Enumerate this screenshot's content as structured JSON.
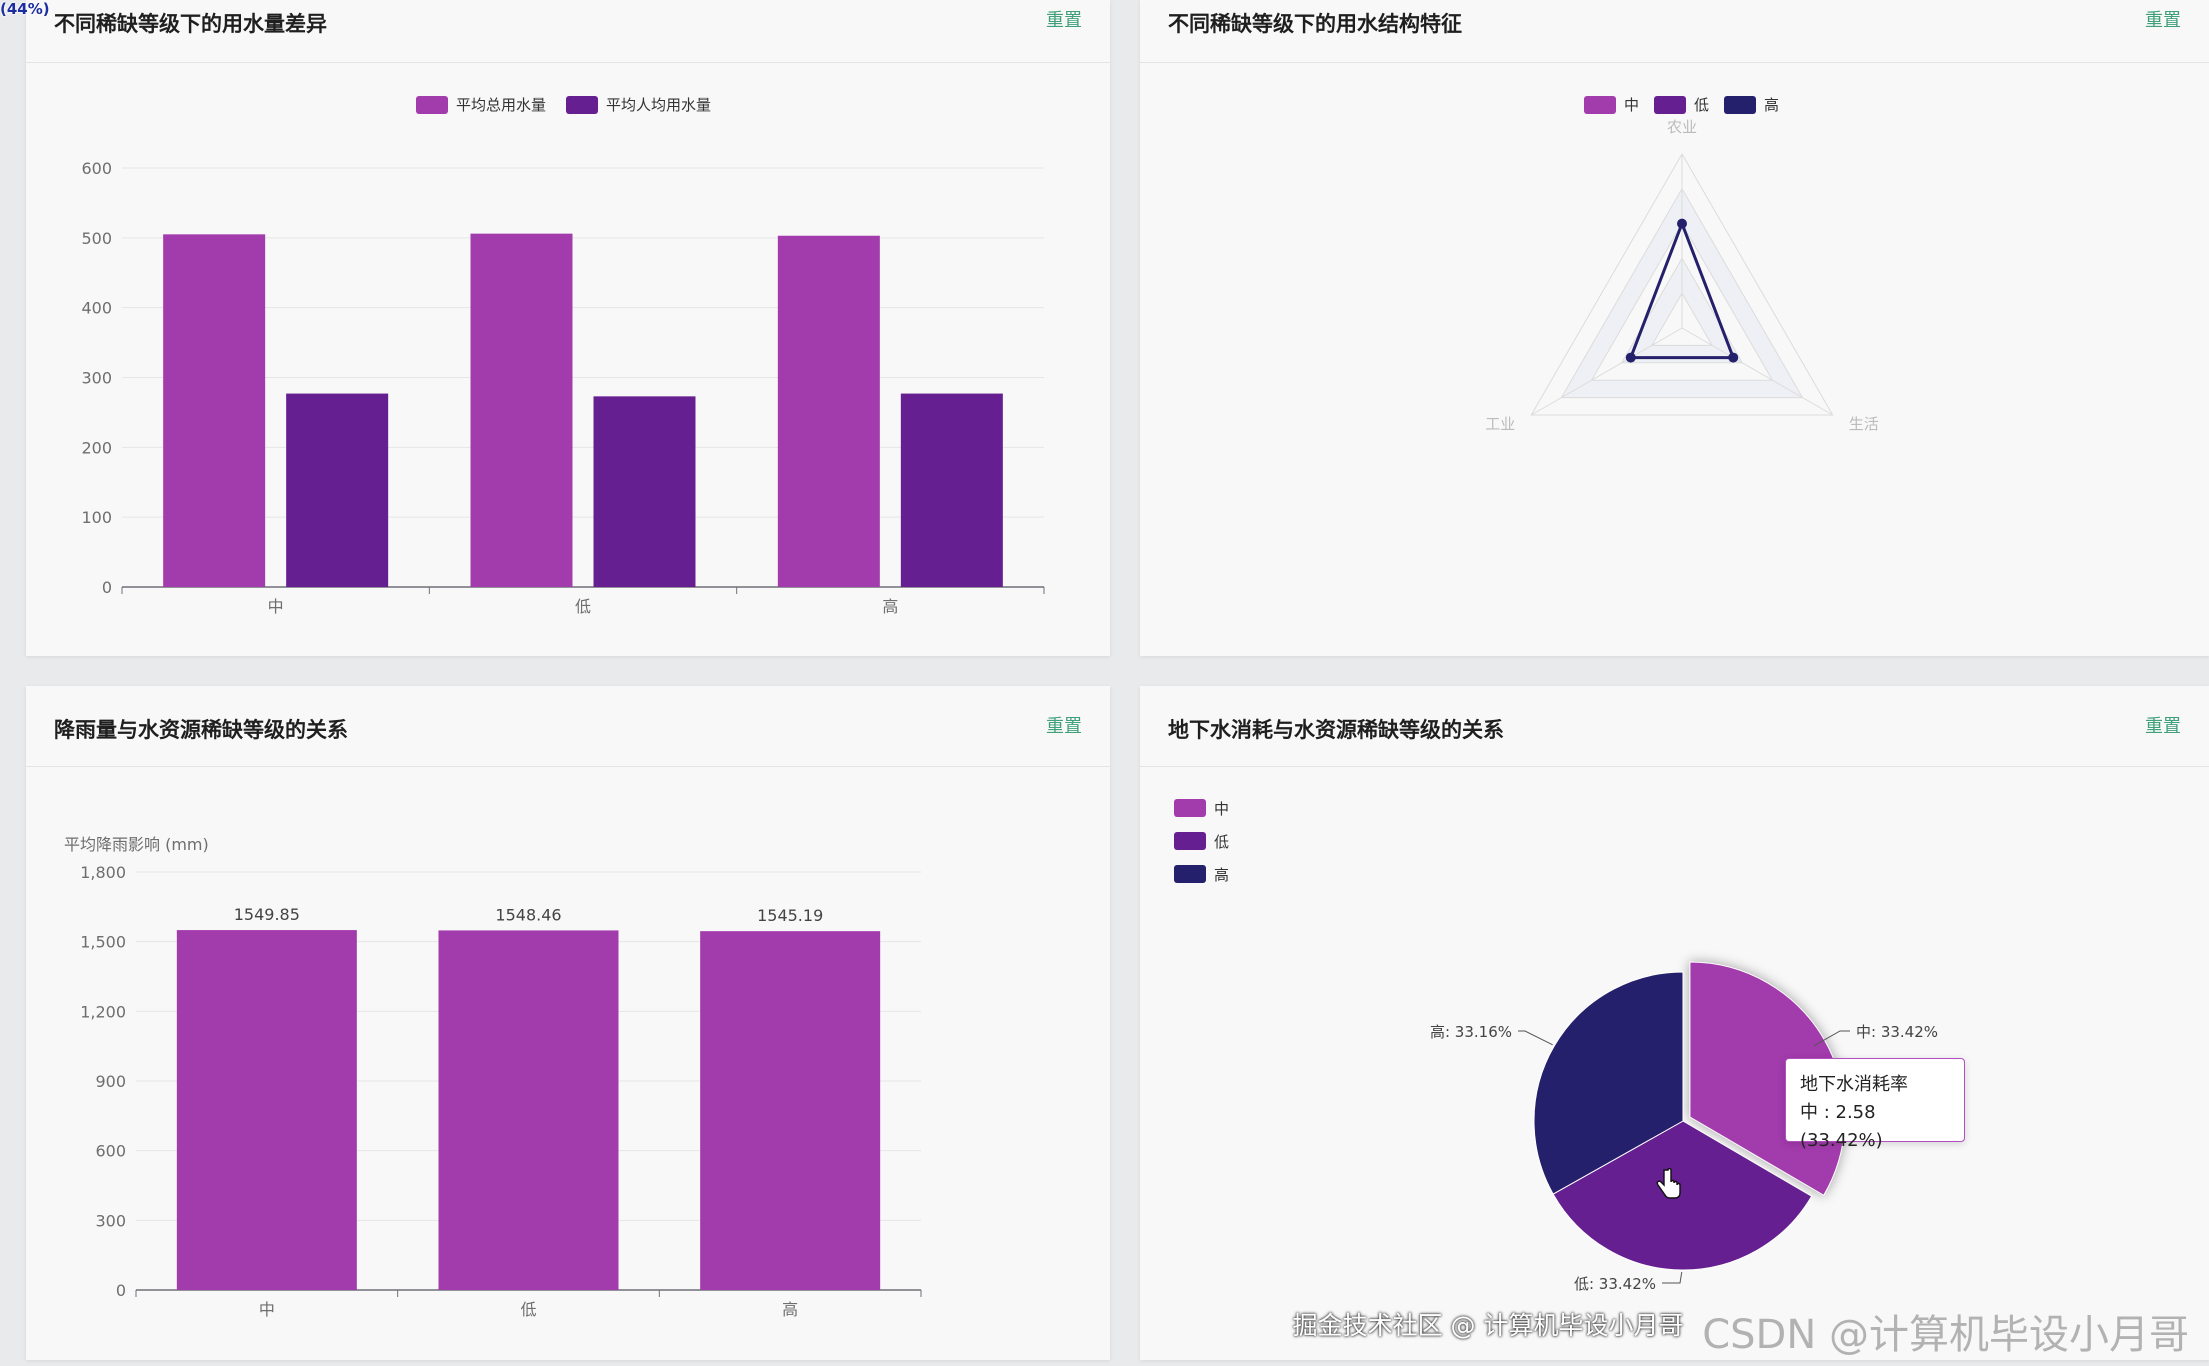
{
  "zoom_badge": "(44%)",
  "reset_label": "重置",
  "colors": {
    "mid": "#a23bac",
    "low": "#651f90",
    "high": "#25206b",
    "accent": "#3fa07a"
  },
  "panels": {
    "usage": {
      "title": "不同稀缺等级下的用水量差异"
    },
    "structure": {
      "title": "不同稀缺等级下的用水结构特征"
    },
    "rainfall": {
      "title": "降雨量与水资源稀缺等级的关系"
    },
    "groundwater": {
      "title": "地下水消耗与水资源稀缺等级的关系"
    }
  },
  "tooltip": {
    "title": "地下水消耗率",
    "line": "中 : 2.58 (33.42%)"
  },
  "watermark": {
    "site": "掘金技术社区 @ 计算机毕设小月哥",
    "brand": "CSDN @计算机毕设小月哥"
  },
  "chart_data": [
    {
      "type": "bar",
      "title": "不同稀缺等级下的用水量差异",
      "categories": [
        "中",
        "低",
        "高"
      ],
      "series": [
        {
          "name": "平均总用水量",
          "values": [
            505,
            506,
            503
          ],
          "color": "#a23bac"
        },
        {
          "name": "平均人均用水量",
          "values": [
            277,
            273,
            277
          ],
          "color": "#651f90"
        }
      ],
      "yticks": [
        0,
        100,
        200,
        300,
        400,
        500,
        600
      ],
      "ylim": [
        0,
        600
      ],
      "legend": "top-center"
    },
    {
      "type": "radar",
      "title": "不同稀缺等级下的用水结构特征",
      "indicators": [
        "农业",
        "生活",
        "工业"
      ],
      "series": [
        {
          "name": "中",
          "color": "#a23bac"
        },
        {
          "name": "低",
          "color": "#651f90"
        },
        {
          "name": "高",
          "color": "#25206b"
        }
      ],
      "values": [
        0.6,
        0.34,
        0.34
      ],
      "legend": "top-center"
    },
    {
      "type": "bar",
      "title": "降雨量与水资源稀缺等级的关系",
      "categories": [
        "中",
        "低",
        "高"
      ],
      "values": [
        1549.85,
        1548.46,
        1545.19
      ],
      "labels": [
        "1549.85",
        "1548.46",
        "1545.19"
      ],
      "ylabel": "平均降雨影响 (mm)",
      "yticks": [
        "0",
        "300",
        "600",
        "900",
        "1,200",
        "1,500",
        "1,800"
      ],
      "ylim": [
        0,
        1800
      ],
      "color": "#a23bac"
    },
    {
      "type": "pie",
      "title": "地下水消耗与水资源稀缺等级的关系",
      "series_name": "地下水消耗率",
      "slices": [
        {
          "name": "中",
          "value": 2.58,
          "percent": 33.42,
          "label": "中: 33.42%",
          "color": "#a23bac"
        },
        {
          "name": "低",
          "value": 2.58,
          "percent": 33.42,
          "label": "低: 33.42%",
          "color": "#651f90"
        },
        {
          "name": "高",
          "value": 2.56,
          "percent": 33.16,
          "label": "高: 33.16%",
          "color": "#25206b"
        }
      ],
      "legend": "top-left"
    }
  ]
}
